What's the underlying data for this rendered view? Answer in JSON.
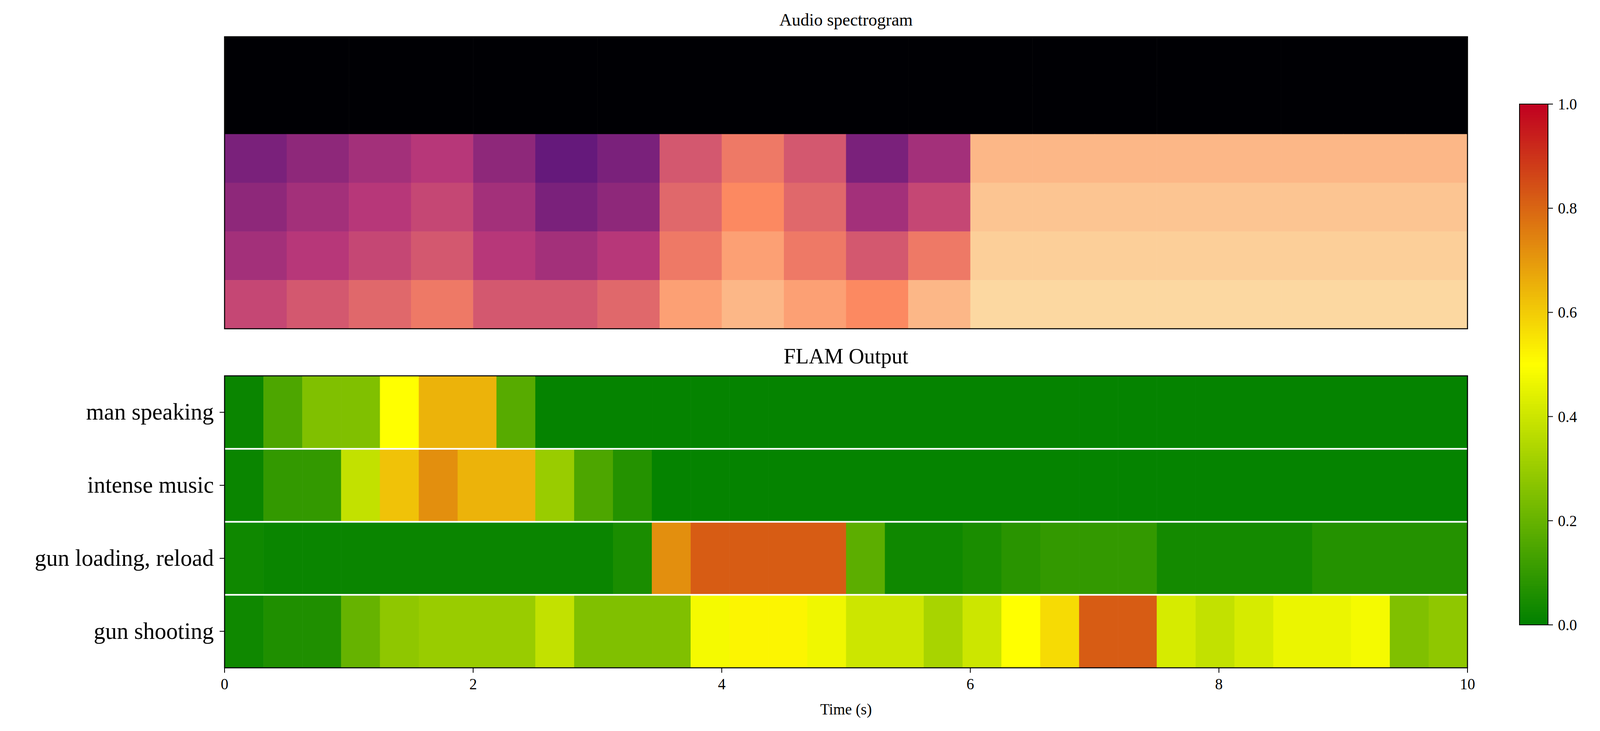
{
  "chart_data": {
    "type": "heatmap",
    "title": "FLAM Output",
    "spectrogram": {
      "title": "Audio spectrogram",
      "values": [
        [
          0,
          0,
          0,
          0,
          0,
          0,
          0,
          0,
          0,
          0,
          0,
          0,
          0,
          0,
          0,
          0,
          0,
          0,
          0,
          0
        ],
        [
          0,
          0,
          0,
          0,
          0,
          0,
          0,
          0,
          0,
          0,
          0,
          0,
          0,
          0,
          0,
          0,
          0,
          0,
          0,
          0
        ],
        [
          0.35,
          0.4,
          0.45,
          0.5,
          0.4,
          0.3,
          0.35,
          0.6,
          0.7,
          0.6,
          0.35,
          0.45,
          0.85,
          0.85,
          0.85,
          0.85,
          0.85,
          0.85,
          0.85,
          0.85
        ],
        [
          0.4,
          0.45,
          0.5,
          0.55,
          0.45,
          0.35,
          0.4,
          0.65,
          0.75,
          0.65,
          0.45,
          0.55,
          0.88,
          0.88,
          0.88,
          0.88,
          0.88,
          0.88,
          0.88,
          0.88
        ],
        [
          0.45,
          0.5,
          0.55,
          0.6,
          0.5,
          0.45,
          0.5,
          0.7,
          0.8,
          0.7,
          0.6,
          0.7,
          0.9,
          0.9,
          0.9,
          0.9,
          0.9,
          0.9,
          0.9,
          0.9
        ],
        [
          0.55,
          0.6,
          0.65,
          0.7,
          0.6,
          0.6,
          0.65,
          0.8,
          0.85,
          0.8,
          0.75,
          0.85,
          0.92,
          0.92,
          0.92,
          0.92,
          0.92,
          0.92,
          0.92,
          0.92
        ]
      ]
    },
    "rows": [
      "man speaking",
      "intense music",
      "gun loading, reload",
      "gun shooting"
    ],
    "x_edges": [
      0,
      0.3125,
      0.625,
      0.9375,
      1.25,
      1.5625,
      1.875,
      2.1875,
      2.5,
      2.8125,
      3.125,
      3.4375,
      3.75,
      4.0625,
      4.375,
      4.6875,
      5,
      5.3125,
      5.625,
      5.9375,
      6.25,
      6.5625,
      6.875,
      7.1875,
      7.5,
      7.8125,
      8.125,
      8.4375,
      8.75,
      9.0625,
      9.375,
      9.6875,
      10
    ],
    "values": [
      [
        0.02,
        0.15,
        0.25,
        0.25,
        0.5,
        0.65,
        0.65,
        0.17,
        0.01,
        0.01,
        0.01,
        0.01,
        0.01,
        0.01,
        0.01,
        0.01,
        0.01,
        0.01,
        0.01,
        0.01,
        0.01,
        0.01,
        0.01,
        0.01,
        0.01,
        0.01,
        0.01,
        0.01,
        0.01,
        0.01,
        0.01,
        0.01
      ],
      [
        0.02,
        0.1,
        0.1,
        0.38,
        0.62,
        0.72,
        0.65,
        0.65,
        0.3,
        0.15,
        0.07,
        0.01,
        0.01,
        0.01,
        0.01,
        0.01,
        0.01,
        0.01,
        0.01,
        0.01,
        0.01,
        0.01,
        0.01,
        0.01,
        0.01,
        0.01,
        0.01,
        0.01,
        0.01,
        0.01,
        0.01,
        0.01
      ],
      [
        0.03,
        0.02,
        0.02,
        0.02,
        0.02,
        0.02,
        0.02,
        0.02,
        0.02,
        0.02,
        0.05,
        0.72,
        0.82,
        0.82,
        0.82,
        0.82,
        0.18,
        0.03,
        0.03,
        0.05,
        0.08,
        0.1,
        0.1,
        0.1,
        0.04,
        0.04,
        0.04,
        0.04,
        0.07,
        0.07,
        0.07,
        0.07
      ],
      [
        0.03,
        0.06,
        0.06,
        0.2,
        0.28,
        0.3,
        0.3,
        0.3,
        0.38,
        0.25,
        0.25,
        0.25,
        0.48,
        0.52,
        0.52,
        0.47,
        0.4,
        0.4,
        0.33,
        0.4,
        0.5,
        0.57,
        0.82,
        0.82,
        0.42,
        0.38,
        0.42,
        0.46,
        0.46,
        0.48,
        0.25,
        0.28
      ]
    ],
    "xlim": [
      0,
      10
    ],
    "xticks": [
      0,
      2,
      4,
      6,
      8,
      10
    ],
    "xlabel": "Time (s)",
    "colorbar": {
      "range": [
        0,
        1
      ],
      "ticks": [
        {
          "value": 0,
          "label": "0.0"
        },
        {
          "value": 0.2,
          "label": "0.2"
        },
        {
          "value": 0.4,
          "label": "0.4"
        },
        {
          "value": 0.6,
          "label": "0.6"
        },
        {
          "value": 0.8,
          "label": "0.8"
        },
        {
          "value": 1,
          "label": "1.0"
        }
      ]
    }
  }
}
